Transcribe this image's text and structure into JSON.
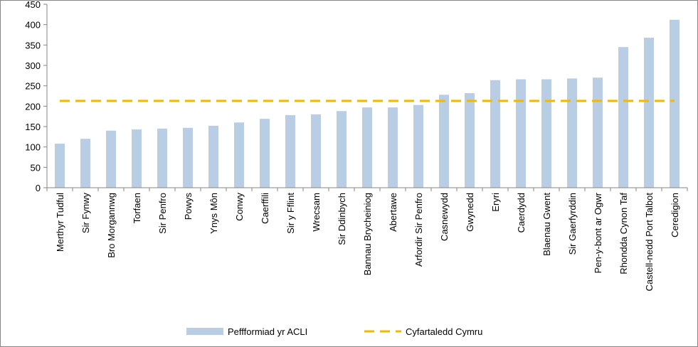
{
  "chart_data": {
    "type": "bar",
    "categories": [
      "Merthyr Tudful",
      "Sir Fynwy",
      "Bro Morgannwg",
      "Torfaen",
      "Sir Penfro",
      "Powys",
      "Ynys Môn",
      "Conwy",
      "Caerffili",
      "Sir y Fflint",
      "Wrecsam",
      "Sir Ddinbych",
      "Bannau Brycheiniog",
      "Abertawe",
      "Arfordir Sir Penfro",
      "Casnewydd",
      "Gwynedd",
      "Eryri",
      "Caerdydd",
      "Blaenau Gwent",
      "Sir Gaerfyrddin",
      "Pen-y-bont ar Ogwr",
      "Rhondda Cynon Taf",
      "Castell-nedd Port Talbot",
      "Ceredigion"
    ],
    "series": [
      {
        "name": "Peffformiad yr ACLI",
        "type": "bar",
        "color": "#b9cde5",
        "values": [
          108,
          120,
          140,
          143,
          145,
          147,
          152,
          160,
          169,
          178,
          180,
          188,
          197,
          197,
          203,
          228,
          232,
          264,
          266,
          266,
          268,
          270,
          345,
          368,
          412
        ]
      },
      {
        "name": "Cyfartaledd Cymru",
        "type": "line",
        "color": "#f5b800",
        "values": [
          213,
          213,
          213,
          213,
          213,
          213,
          213,
          213,
          213,
          213,
          213,
          213,
          213,
          213,
          213,
          213,
          213,
          213,
          213,
          213,
          213,
          213,
          213,
          213,
          213
        ]
      }
    ],
    "ylim": [
      0,
      450
    ],
    "yticks": [
      0,
      50,
      100,
      150,
      200,
      250,
      300,
      350,
      400,
      450
    ],
    "grid": false,
    "legend": "bottom"
  }
}
